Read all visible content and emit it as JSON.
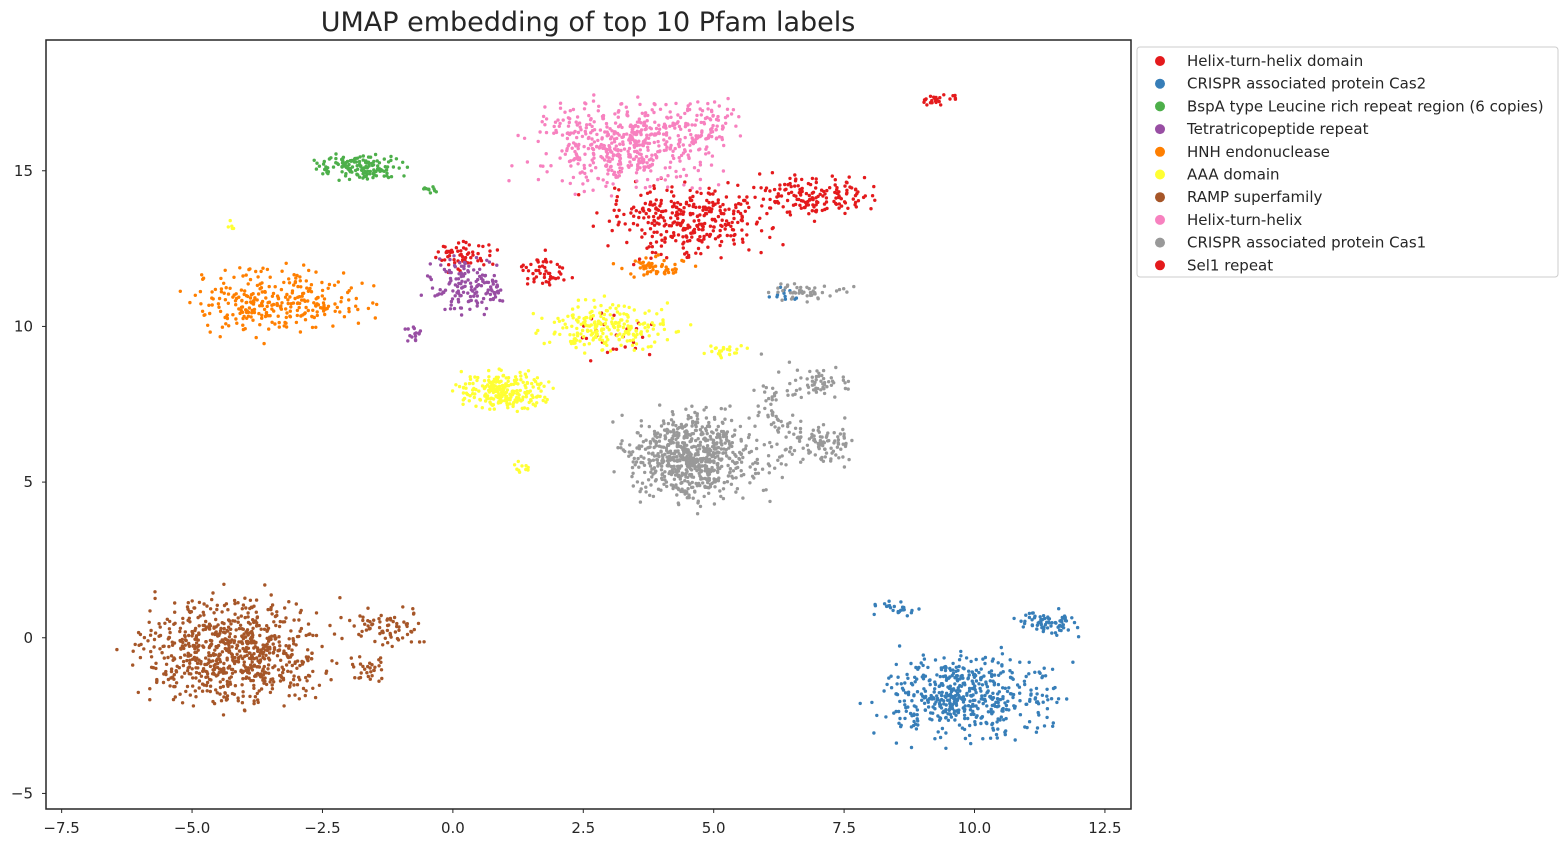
{
  "chart_data": {
    "type": "scatter",
    "title": "UMAP embedding of top 10 Pfam labels",
    "xlabel": "",
    "ylabel": "",
    "xlim": [
      -7.8,
      13.0
    ],
    "ylim": [
      -5.5,
      19.2
    ],
    "x_ticks": [
      -7.5,
      -5.0,
      -2.5,
      0.0,
      2.5,
      5.0,
      7.5,
      10.0,
      12.5
    ],
    "x_tick_labels": [
      "−7.5",
      "−5.0",
      "−2.5",
      "0.0",
      "2.5",
      "5.0",
      "7.5",
      "10.0",
      "12.5"
    ],
    "y_ticks": [
      -5,
      0,
      5,
      10,
      15
    ],
    "y_tick_labels": [
      "−5",
      "0",
      "5",
      "10",
      "15"
    ],
    "grid": false,
    "legend_position": "outside top-right",
    "series": [
      {
        "name": "Helix-turn-helix domain",
        "color": "#e41a1c",
        "clusters": [
          {
            "center": [
              4.5,
              13.5
            ],
            "spread": [
              1.4,
              1.0
            ],
            "n": 260
          },
          {
            "center": [
              7.0,
              14.2
            ],
            "spread": [
              0.9,
              0.6
            ],
            "n": 150
          },
          {
            "center": [
              0.2,
              12.3
            ],
            "spread": [
              0.5,
              0.4
            ],
            "n": 60
          },
          {
            "center": [
              1.8,
              11.8
            ],
            "spread": [
              0.4,
              0.5
            ],
            "n": 50
          },
          {
            "center": [
              3.2,
              9.8
            ],
            "spread": [
              0.6,
              0.6
            ],
            "n": 25
          },
          {
            "center": [
              9.3,
              17.3
            ],
            "spread": [
              0.3,
              0.15
            ],
            "n": 25
          }
        ]
      },
      {
        "name": "CRISPR associated protein Cas2",
        "color": "#377eb8",
        "clusters": [
          {
            "center": [
              9.8,
              -1.9
            ],
            "spread": [
              1.3,
              1.1
            ],
            "n": 520
          },
          {
            "center": [
              11.4,
              0.5
            ],
            "spread": [
              0.5,
              0.3
            ],
            "n": 70
          },
          {
            "center": [
              8.5,
              0.9
            ],
            "spread": [
              0.3,
              0.25
            ],
            "n": 25
          },
          {
            "center": [
              6.3,
              11.0
            ],
            "spread": [
              0.4,
              0.2
            ],
            "n": 12
          }
        ]
      },
      {
        "name": "BspA type Leucine rich repeat region (6 copies)",
        "color": "#4daf4a",
        "clusters": [
          {
            "center": [
              -1.8,
              15.1
            ],
            "spread": [
              0.7,
              0.35
            ],
            "n": 150
          },
          {
            "center": [
              -0.5,
              14.4
            ],
            "spread": [
              0.2,
              0.1
            ],
            "n": 10
          }
        ]
      },
      {
        "name": "Tetratricopeptide repeat",
        "color": "#984ea3",
        "clusters": [
          {
            "center": [
              0.3,
              11.3
            ],
            "spread": [
              0.6,
              0.7
            ],
            "n": 150
          },
          {
            "center": [
              -0.8,
              9.8
            ],
            "spread": [
              0.2,
              0.3
            ],
            "n": 15
          }
        ]
      },
      {
        "name": "HNH endonuclease",
        "color": "#ff7f00",
        "clusters": [
          {
            "center": [
              -3.4,
              10.8
            ],
            "spread": [
              1.3,
              0.9
            ],
            "n": 300
          },
          {
            "center": [
              3.9,
              11.9
            ],
            "spread": [
              0.6,
              0.3
            ],
            "n": 55
          }
        ]
      },
      {
        "name": "AAA domain",
        "color": "#ffff33",
        "clusters": [
          {
            "center": [
              1.0,
              7.9
            ],
            "spread": [
              0.7,
              0.5
            ],
            "n": 230
          },
          {
            "center": [
              3.0,
              10.0
            ],
            "spread": [
              1.0,
              0.6
            ],
            "n": 220
          },
          {
            "center": [
              5.2,
              9.2
            ],
            "spread": [
              0.3,
              0.2
            ],
            "n": 25
          },
          {
            "center": [
              1.3,
              5.5
            ],
            "spread": [
              0.15,
              0.15
            ],
            "n": 10
          },
          {
            "center": [
              -4.3,
              13.2
            ],
            "spread": [
              0.1,
              0.15
            ],
            "n": 5
          }
        ]
      },
      {
        "name": "RAMP superfamily",
        "color": "#a65628",
        "clusters": [
          {
            "center": [
              -4.2,
              -0.4
            ],
            "spread": [
              1.4,
              1.4
            ],
            "n": 780
          },
          {
            "center": [
              -1.3,
              0.3
            ],
            "spread": [
              0.6,
              0.5
            ],
            "n": 70
          },
          {
            "center": [
              -1.6,
              -1.0
            ],
            "spread": [
              0.3,
              0.4
            ],
            "n": 30
          }
        ]
      },
      {
        "name": "Helix-turn-helix",
        "color": "#f781bf",
        "clusters": [
          {
            "center": [
              3.3,
              15.8
            ],
            "spread": [
              1.4,
              1.1
            ],
            "n": 520
          },
          {
            "center": [
              4.8,
              16.5
            ],
            "spread": [
              0.6,
              0.7
            ],
            "n": 80
          }
        ]
      },
      {
        "name": "CRISPR associated protein Cas1",
        "color": "#999999",
        "clusters": [
          {
            "center": [
              4.6,
              5.8
            ],
            "spread": [
              1.0,
              1.1
            ],
            "n": 720
          },
          {
            "center": [
              7.1,
              6.3
            ],
            "spread": [
              0.5,
              0.5
            ],
            "n": 90
          },
          {
            "center": [
              7.1,
              8.2
            ],
            "spread": [
              0.5,
              0.35
            ],
            "n": 50
          },
          {
            "center": [
              6.8,
              11.1
            ],
            "spread": [
              0.6,
              0.25
            ],
            "n": 45
          },
          {
            "center": [
              6.2,
              7.0
            ],
            "spread": [
              0.4,
              1.4
            ],
            "n": 70
          }
        ]
      },
      {
        "name": "Sel1 repeat",
        "color": "#e41a1c",
        "clusters": [
          {
            "center": [
              4.6,
              13.3
            ],
            "spread": [
              1.0,
              0.8
            ],
            "n": 80
          }
        ]
      }
    ]
  }
}
